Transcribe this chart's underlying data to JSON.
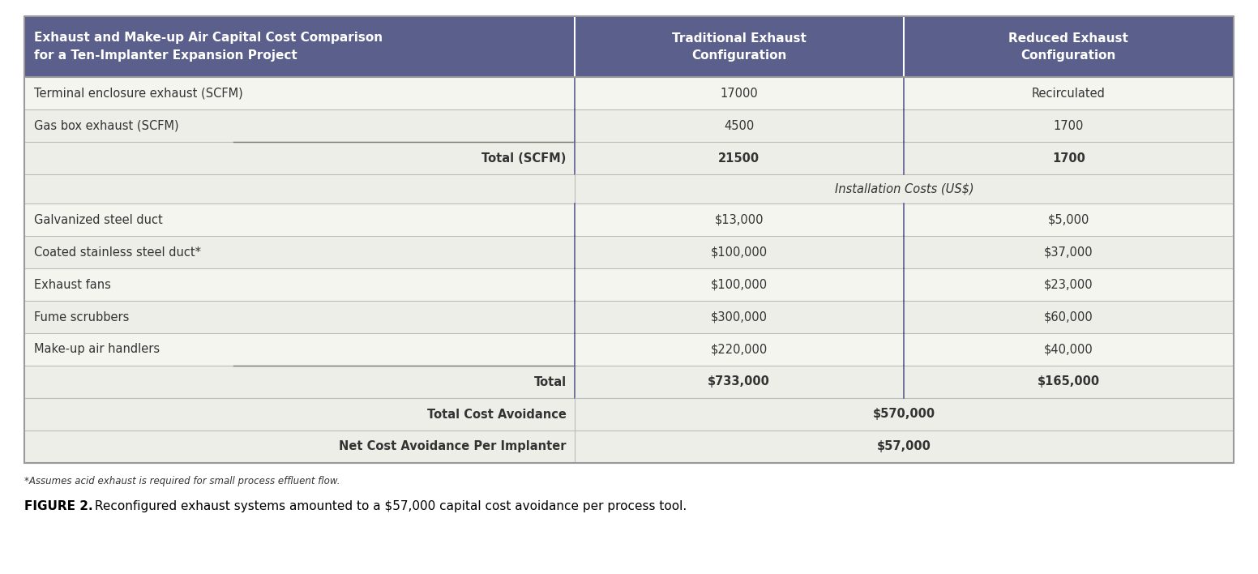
{
  "header_bg_color": "#5b5f8c",
  "header_text_color": "#ffffff",
  "row_bg_even": "#eeeee8",
  "row_bg_odd": "#f5f5f0",
  "subheader_bg": "#eeeee8",
  "border_color": "#bbbbbb",
  "col_divider_color": "#5b5f8c",
  "col1_header": "Exhaust and Make-up Air Capital Cost Comparison\nfor a Ten-Implanter Expansion Project",
  "col2_header": "Traditional Exhaust\nConfiguration",
  "col3_header": "Reduced Exhaust\nConfiguration",
  "rows": [
    {
      "label": "Terminal enclosure exhaust (SCFM)",
      "col2": "17000",
      "col3": "Recirculated",
      "bold": false,
      "right_align_label": false,
      "type": "data"
    },
    {
      "label": "Gas box exhaust (SCFM)",
      "col2": "4500",
      "col3": "1700",
      "bold": false,
      "right_align_label": false,
      "type": "data"
    },
    {
      "label": "Total (SCFM)",
      "col2": "21500",
      "col3": "1700",
      "bold": true,
      "right_align_label": true,
      "type": "total_scfm"
    },
    {
      "label": "Installation Costs (US$)",
      "col2": "",
      "col3": "",
      "bold": false,
      "right_align_label": false,
      "type": "subheader"
    },
    {
      "label": "Galvanized steel duct",
      "col2": "$13,000",
      "col3": "$5,000",
      "bold": false,
      "right_align_label": false,
      "type": "data"
    },
    {
      "label": "Coated stainless steel duct*",
      "col2": "$100,000",
      "col3": "$37,000",
      "bold": false,
      "right_align_label": false,
      "type": "data"
    },
    {
      "label": "Exhaust fans",
      "col2": "$100,000",
      "col3": "$23,000",
      "bold": false,
      "right_align_label": false,
      "type": "data"
    },
    {
      "label": "Fume scrubbers",
      "col2": "$300,000",
      "col3": "$60,000",
      "bold": false,
      "right_align_label": false,
      "type": "data"
    },
    {
      "label": "Make-up air handlers",
      "col2": "$220,000",
      "col3": "$40,000",
      "bold": false,
      "right_align_label": false,
      "type": "data"
    },
    {
      "label": "Total",
      "col2": "$733,000",
      "col3": "$165,000",
      "bold": true,
      "right_align_label": true,
      "type": "total_row"
    },
    {
      "label": "Total Cost Avoidance",
      "col2": "$570,000",
      "col3": "",
      "bold": true,
      "right_align_label": true,
      "type": "avoidance"
    },
    {
      "label": "Net Cost Avoidance Per Implanter",
      "col2": "$57,000",
      "col3": "",
      "bold": true,
      "right_align_label": true,
      "type": "net_avoidance"
    }
  ],
  "footnote": "*Assumes acid exhaust is required for small process effluent flow.",
  "caption_bold": "FIGURE 2.",
  "caption_normal": " Reconfigured exhaust systems amounted to a $57,000 capital cost avoidance per process tool.",
  "outer_bg": "#ffffff",
  "fig_width": 15.52,
  "fig_height": 7.08,
  "dpi": 100
}
